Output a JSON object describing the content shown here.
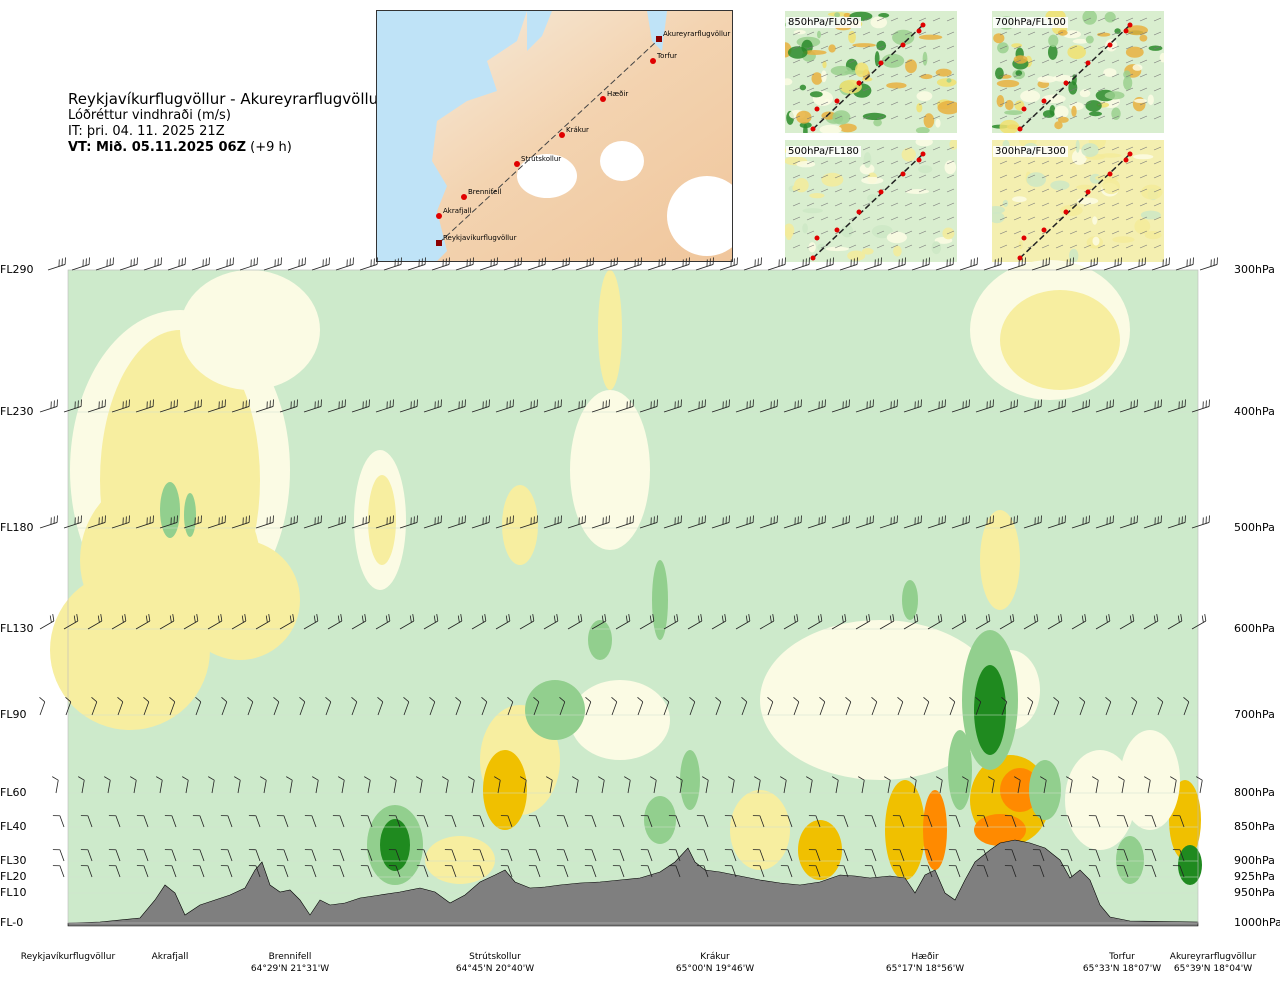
{
  "title": {
    "route": "Reykjavíkurflugvöllur - Akureyrarflugvöllur",
    "variable": "Lóðréttur vindhraði (m/s)",
    "issue_time": "IT: þri. 04. 11. 2025 21Z",
    "valid_time_bold": "VT: Mið. 05.11.2025 06Z",
    "valid_time_offset": "(+9 h)"
  },
  "route_map": {
    "points": [
      "Akureyrarflugvöllur",
      "Torfur",
      "Hæðir",
      "Krákur",
      "Strútskollur",
      "Brennifell",
      "Akrafjall",
      "Reykjavíkurflugvöllur"
    ]
  },
  "mini_maps": [
    {
      "label": "850hPa/FL050"
    },
    {
      "label": "700hPa/FL100"
    },
    {
      "label": "500hPa/FL180"
    },
    {
      "label": "300hPa/FL300"
    }
  ],
  "colors": {
    "strong_down": "#ff8a00",
    "down": "#f0c000",
    "weak_down": "#f7eea0",
    "neutral": "#fbfbe4",
    "weak_up": "#cdeacb",
    "up": "#92cf8e",
    "strong_up": "#1f8a1f",
    "terrain": "#7f7f7f"
  },
  "chart_data": {
    "type": "heatmap",
    "title": "",
    "xlabel": "",
    "ylabel": "",
    "y_levels_left": [
      "FL290",
      "FL230",
      "FL180",
      "FL130",
      "FL90",
      "FL60",
      "FL40",
      "FL30",
      "FL20",
      "FL10",
      "FL-0"
    ],
    "y_levels_right": [
      "300hPa",
      "400hPa",
      "500hPa",
      "600hPa",
      "700hPa",
      "800hPa",
      "850hPa",
      "900hPa",
      "925hPa",
      "950hPa",
      "1000hPa"
    ],
    "x_stations": [
      {
        "name": "Reykjavíkurflugvöllur",
        "coord": ""
      },
      {
        "name": "Akrafjall",
        "coord": ""
      },
      {
        "name": "Brennifell",
        "coord": "64°29'N 21°31'W"
      },
      {
        "name": "Strútskollur",
        "coord": "64°45'N 20°40'W"
      },
      {
        "name": "Krákur",
        "coord": "65°00'N 19°46'W"
      },
      {
        "name": "Hæðir",
        "coord": "65°17'N 18°56'W"
      },
      {
        "name": "Torfur",
        "coord": "65°33'N 18°07'W"
      },
      {
        "name": "Akureyrarflugvöllur",
        "coord": "65°39'N 18°04'W"
      }
    ]
  }
}
